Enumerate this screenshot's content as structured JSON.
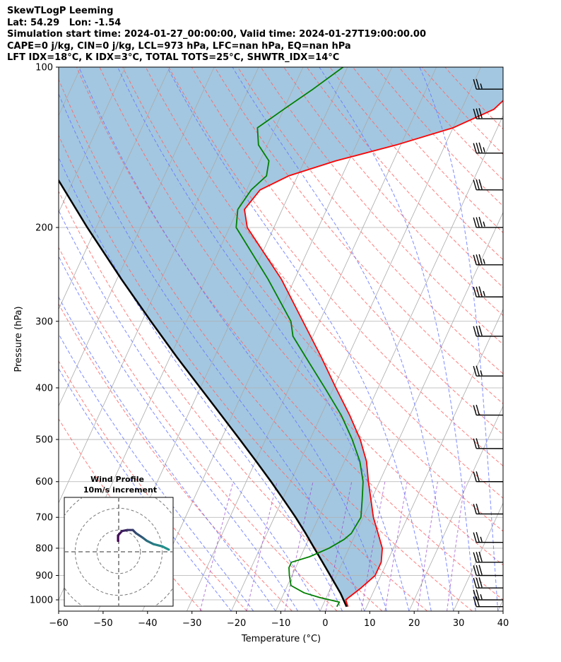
{
  "header": {
    "line1": "SkewTLogP Leeming",
    "line2": "Lat: 54.29   Lon: -1.54",
    "line3": "Simulation start time: 2024-01-27_00:00:00, Valid time: 2024-01-27T19:00:00.00",
    "line4": "CAPE=0 j/kg, CIN=0 j/kg, LCL=973 hPa, LFC=nan hPa, EQ=nan hPa",
    "line5": "LFT IDX=18$^\\circ$C, K IDX=3$^\\circ$C, TOTAL TOTS=25$^\\circ$C, SHWTR_IDX=14$^\\circ$C"
  },
  "colors": {
    "temperature": "#ff0000",
    "dewpoint": "#008000",
    "parcel": "#000000",
    "cape_fill": "#a3c7e0",
    "dry_adiabat": "#ff6666",
    "moist_adiabat": "#6677ff",
    "mixing_ratio": "#9944cc",
    "isotherm": "#aaaaaa"
  },
  "chart_data": {
    "type": "skewt",
    "xlabel": "Temperature ($^\\circ$C)",
    "ylabel": "Pressure (hPa)",
    "xlim": [
      -60,
      40
    ],
    "ylim": [
      1050,
      100
    ],
    "yscale": "log",
    "skew_deg_per_decade": 55,
    "grid": true,
    "x_ticks": [
      -60,
      -50,
      -40,
      -30,
      -20,
      -10,
      0,
      10,
      20,
      30,
      40
    ],
    "x_tick_labels": [
      "−60",
      "−50",
      "−40",
      "−30",
      "−20",
      "−10",
      "0",
      "10",
      "20",
      "30",
      "40"
    ],
    "y_ticks": [
      1000,
      900,
      800,
      700,
      600,
      500,
      400,
      300,
      200,
      100
    ],
    "y_tick_labels": [
      "1000",
      "900",
      "800",
      "700",
      "600",
      "500",
      "400",
      "300",
      "200",
      "100"
    ],
    "series": [
      {
        "name": "Temperature",
        "pressure": [
          1030,
          1000,
          950,
          900,
          850,
          800,
          750,
          700,
          650,
          600,
          550,
          500,
          450,
          400,
          350,
          300,
          250,
          200,
          185,
          170,
          160,
          150,
          140,
          130,
          120,
          110,
          100
        ],
        "temperature": [
          5.8,
          4.6,
          6.8,
          8.7,
          8.7,
          7.5,
          5.0,
          2.3,
          0.0,
          -2.5,
          -5.0,
          -8.7,
          -13.6,
          -19.5,
          -26.0,
          -33.8,
          -43.0,
          -56.0,
          -58.5,
          -57.0,
          -52.0,
          -43.0,
          -31.0,
          -20.0,
          -12.7,
          -10.0,
          -8.5
        ]
      },
      {
        "name": "Dewpoint",
        "pressure": [
          1030,
          1010,
          990,
          970,
          940,
          900,
          870,
          850,
          830,
          800,
          770,
          750,
          700,
          650,
          600,
          550,
          500,
          450,
          400,
          350,
          320,
          300,
          250,
          200,
          185,
          170,
          160,
          150,
          140,
          130,
          120,
          110,
          100
        ],
        "dewpoint": [
          3.3,
          3.4,
          -1.5,
          -5.5,
          -9.2,
          -10.6,
          -11.5,
          -11.5,
          -8.0,
          -4.5,
          -2.0,
          -1.0,
          -0.5,
          -2.0,
          -3.7,
          -6.5,
          -10.5,
          -15.5,
          -22.0,
          -29.5,
          -34.5,
          -36.5,
          -46.0,
          -58.5,
          -60.0,
          -59.0,
          -57.0,
          -58.0,
          -62.0,
          -64.0,
          -60.0,
          -55.5,
          -51.0
        ]
      },
      {
        "name": "Parcel",
        "pressure": [
          1030,
          973,
          900,
          850,
          800,
          750,
          700,
          650,
          600,
          550,
          500,
          450,
          400,
          350,
          300,
          250,
          200,
          150,
          100
        ],
        "temperature": [
          5.5,
          2.8,
          -1.4,
          -4.5,
          -7.8,
          -11.3,
          -15.2,
          -19.6,
          -24.4,
          -29.8,
          -35.8,
          -42.5,
          -50.0,
          -58.5,
          -68.0,
          -79.0,
          -92.0,
          -108.0,
          -128.0
        ]
      }
    ],
    "wind_barbs": [
      {
        "pressure": 1030,
        "speed_kt": 20
      },
      {
        "pressure": 1000,
        "speed_kt": 25
      },
      {
        "pressure": 950,
        "speed_kt": 30
      },
      {
        "pressure": 900,
        "speed_kt": 30
      },
      {
        "pressure": 850,
        "speed_kt": 30
      },
      {
        "pressure": 780,
        "speed_kt": 25
      },
      {
        "pressure": 690,
        "speed_kt": 20
      },
      {
        "pressure": 600,
        "speed_kt": 20
      },
      {
        "pressure": 520,
        "speed_kt": 20
      },
      {
        "pressure": 450,
        "speed_kt": 20
      },
      {
        "pressure": 380,
        "speed_kt": 25
      },
      {
        "pressure": 320,
        "speed_kt": 30
      },
      {
        "pressure": 270,
        "speed_kt": 35
      },
      {
        "pressure": 235,
        "speed_kt": 35
      },
      {
        "pressure": 200,
        "speed_kt": 35
      },
      {
        "pressure": 170,
        "speed_kt": 30
      },
      {
        "pressure": 145,
        "speed_kt": 35
      },
      {
        "pressure": 125,
        "speed_kt": 30
      },
      {
        "pressure": 110,
        "speed_kt": 25
      }
    ],
    "hodograph": {
      "title": "Wind Profile",
      "subtitle": "10m/s increment",
      "ring_count": 3,
      "ring_step_ms": 10,
      "max_ms": 25,
      "points": [
        {
          "u": -0.3,
          "v": 5.0
        },
        {
          "u": -0.3,
          "v": 7.5
        },
        {
          "u": 1.5,
          "v": 9.5
        },
        {
          "u": 4.0,
          "v": 10.0
        },
        {
          "u": 6.5,
          "v": 10.0
        },
        {
          "u": 8.0,
          "v": 8.5
        },
        {
          "u": 11.0,
          "v": 6.5
        },
        {
          "u": 13.0,
          "v": 5.0
        },
        {
          "u": 16.0,
          "v": 3.5
        },
        {
          "u": 20.0,
          "v": 2.5
        },
        {
          "u": 23.0,
          "v": 1.0
        }
      ]
    }
  }
}
